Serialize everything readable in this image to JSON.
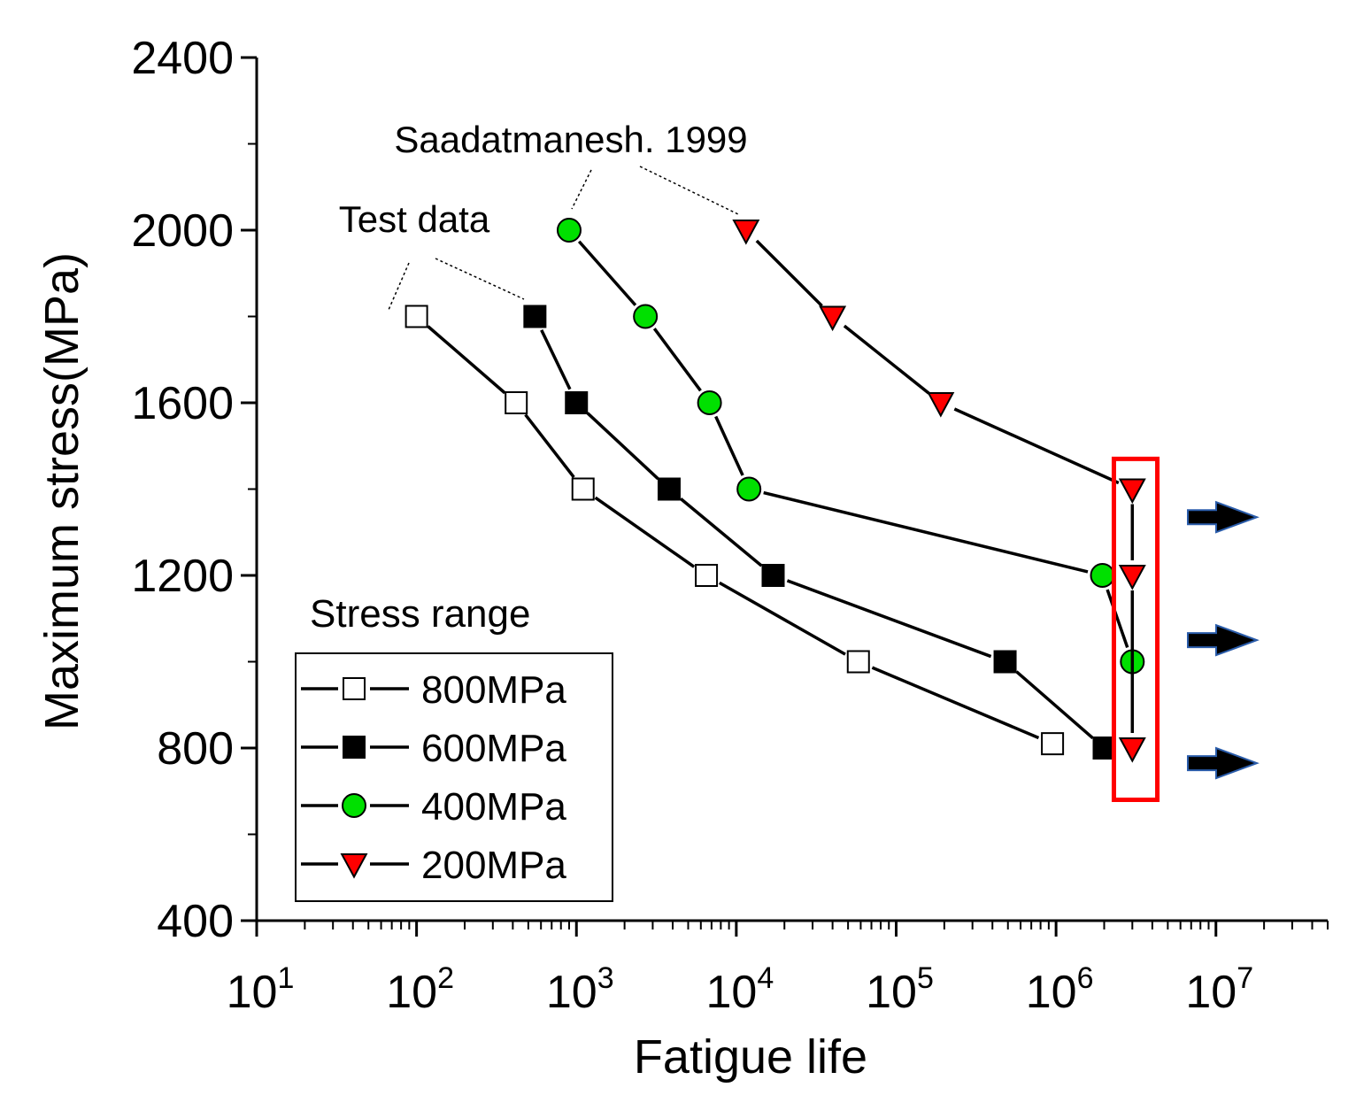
{
  "chart_data": {
    "type": "scatter",
    "xscale": "log",
    "xlim": [
      10,
      50000000
    ],
    "ylim": [
      400,
      2400
    ],
    "yticks": [
      400,
      800,
      1200,
      1600,
      2000,
      2400
    ],
    "ytick_labels": [
      "400",
      "800",
      "1200",
      "1600",
      "2000",
      "2400"
    ],
    "xtick_bases": [
      "10",
      "10",
      "10",
      "10",
      "10",
      "10",
      "10"
    ],
    "xtick_exps": [
      "1",
      "2",
      "3",
      "4",
      "5",
      "6",
      "7"
    ],
    "xlabel": "Fatigue life",
    "ylabel": "Maximum stress(MPa)",
    "legend": {
      "title": "Stress range",
      "placement": "bottom-left",
      "frame": true
    },
    "series": [
      {
        "name": "800MPa",
        "marker": "open-square",
        "color": "#ffffff",
        "points": [
          [
            100,
            1800
          ],
          [
            420,
            1600
          ],
          [
            1100,
            1400
          ],
          [
            6500,
            1200
          ],
          [
            58000,
            1000
          ],
          [
            950000,
            810
          ]
        ]
      },
      {
        "name": "600MPa",
        "marker": "filled-square",
        "color": "#000000",
        "points": [
          [
            550,
            1800
          ],
          [
            1000,
            1600
          ],
          [
            3800,
            1400
          ],
          [
            17000,
            1200
          ],
          [
            480000,
            1000
          ],
          [
            2000000,
            800
          ]
        ]
      },
      {
        "name": "400MPa",
        "marker": "circle",
        "color": "#00e000",
        "points": [
          [
            900,
            2000
          ],
          [
            2700,
            1800
          ],
          [
            6800,
            1600
          ],
          [
            12000,
            1400
          ],
          [
            1950000,
            1200
          ],
          [
            3000000,
            1000
          ]
        ]
      },
      {
        "name": "200MPa",
        "marker": "down-triangle",
        "color": "#ff0000",
        "points": [
          [
            11500,
            2000
          ],
          [
            40000,
            1800
          ],
          [
            190000,
            1600
          ],
          [
            3000000,
            1400
          ],
          [
            3000000,
            1200
          ],
          [
            3000000,
            800
          ]
        ]
      }
    ],
    "annotations": [
      {
        "text": "Test data",
        "points_to": [
          "800MPa",
          "600MPa"
        ]
      },
      {
        "text": "Saadatmanesh. 1999",
        "points_to": [
          "400MPa",
          "200MPa"
        ]
      }
    ],
    "highlight_box": {
      "color": "#ff0000",
      "x_range": [
        2300000,
        4300000
      ],
      "y_range": [
        680,
        1470
      ]
    },
    "runout_arrows": {
      "y_values": [
        1335,
        1050,
        765
      ],
      "color": "#000000",
      "outline": "#2a5caa"
    }
  }
}
